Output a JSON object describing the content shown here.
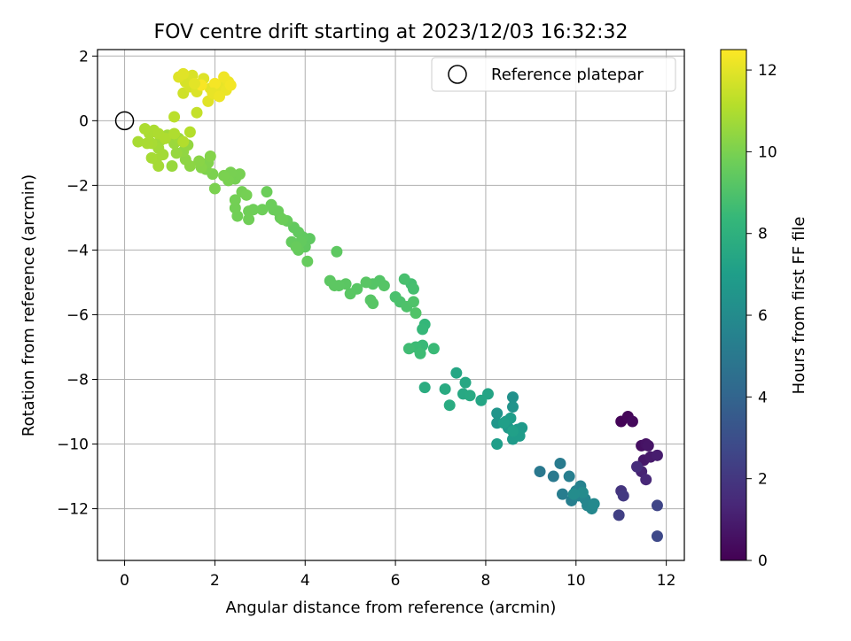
{
  "chart_data": {
    "type": "scatter",
    "title": "FOV centre drift starting at 2023/12/03 16:32:32",
    "xlabel": "Angular distance from reference (arcmin)",
    "ylabel": "Rotation from reference (arcmin)",
    "xlim": [
      -0.6,
      12.4
    ],
    "ylim": [
      -13.6,
      2.2
    ],
    "xticks": [
      0,
      2,
      4,
      6,
      8,
      10,
      12
    ],
    "yticks": [
      -12,
      -10,
      -8,
      -6,
      -4,
      -2,
      0,
      2
    ],
    "grid": true,
    "legend": {
      "placement": "top-right",
      "entries": [
        "Reference platepar"
      ]
    },
    "reference_point": {
      "x": 0,
      "y": 0,
      "marker": "hollow-circle"
    },
    "colorbar": {
      "label": "Hours from first FF file",
      "range": [
        0,
        12.5
      ],
      "ticks": [
        0,
        2,
        4,
        6,
        8,
        10,
        12
      ],
      "colormap": "viridis",
      "colors": [
        "#440154",
        "#482878",
        "#3e4989",
        "#31688e",
        "#26828e",
        "#1f9e89",
        "#35b779",
        "#6ece58",
        "#b5de2b",
        "#fde725"
      ]
    },
    "series": [
      {
        "points": [
          [
            11.0,
            -9.3,
            0.1
          ],
          [
            11.15,
            -9.15,
            0.2
          ],
          [
            11.25,
            -9.3,
            0.3
          ],
          [
            11.45,
            -10.05,
            0.5
          ],
          [
            11.55,
            -10.0,
            0.6
          ],
          [
            11.6,
            -10.05,
            0.7
          ],
          [
            11.5,
            -10.5,
            0.8
          ],
          [
            11.65,
            -10.4,
            0.9
          ],
          [
            11.8,
            -10.35,
            1.0
          ],
          [
            11.45,
            -10.85,
            1.2
          ],
          [
            11.55,
            -11.1,
            1.4
          ],
          [
            11.35,
            -10.7,
            1.6
          ],
          [
            11.0,
            -11.45,
            1.9
          ],
          [
            11.05,
            -11.6,
            2.1
          ],
          [
            10.95,
            -12.2,
            2.4
          ],
          [
            11.8,
            -11.9,
            2.6
          ],
          [
            11.8,
            -12.85,
            2.8
          ],
          [
            9.2,
            -10.85,
            5.0
          ],
          [
            9.5,
            -11.0,
            5.1
          ],
          [
            9.65,
            -10.6,
            5.2
          ],
          [
            9.7,
            -11.55,
            5.3
          ],
          [
            9.85,
            -11.0,
            5.35
          ],
          [
            9.9,
            -11.75,
            5.4
          ],
          [
            10.0,
            -11.45,
            5.5
          ],
          [
            10.1,
            -11.3,
            5.55
          ],
          [
            10.05,
            -11.6,
            5.6
          ],
          [
            10.2,
            -11.7,
            5.7
          ],
          [
            10.25,
            -11.9,
            5.75
          ],
          [
            10.35,
            -12.0,
            5.8
          ],
          [
            10.4,
            -11.85,
            5.9
          ],
          [
            10.15,
            -11.5,
            6.0
          ],
          [
            9.95,
            -11.55,
            6.05
          ],
          [
            8.6,
            -8.55,
            6.3
          ],
          [
            8.6,
            -8.85,
            6.4
          ],
          [
            8.25,
            -9.05,
            6.5
          ],
          [
            8.25,
            -9.35,
            6.55
          ],
          [
            8.45,
            -9.3,
            6.6
          ],
          [
            8.5,
            -9.5,
            6.65
          ],
          [
            8.7,
            -9.55,
            6.7
          ],
          [
            8.8,
            -9.5,
            6.75
          ],
          [
            8.6,
            -9.85,
            6.8
          ],
          [
            8.75,
            -9.75,
            6.85
          ],
          [
            8.55,
            -9.2,
            6.9
          ],
          [
            8.25,
            -10.0,
            6.95
          ],
          [
            8.4,
            -9.35,
            7.0
          ],
          [
            8.6,
            -9.6,
            7.05
          ],
          [
            8.05,
            -8.45,
            7.3
          ],
          [
            7.9,
            -8.65,
            7.35
          ],
          [
            7.35,
            -7.8,
            7.4
          ],
          [
            7.55,
            -8.1,
            7.45
          ],
          [
            7.5,
            -8.45,
            7.5
          ],
          [
            7.65,
            -8.5,
            7.55
          ],
          [
            7.1,
            -8.3,
            7.6
          ],
          [
            7.2,
            -8.8,
            7.65
          ],
          [
            6.65,
            -8.25,
            7.7
          ],
          [
            6.65,
            -6.3,
            8.3
          ],
          [
            6.6,
            -6.45,
            8.35
          ],
          [
            6.6,
            -6.95,
            8.4
          ],
          [
            6.85,
            -7.05,
            8.45
          ],
          [
            6.45,
            -7.0,
            8.5
          ],
          [
            6.55,
            -7.2,
            8.55
          ],
          [
            6.3,
            -7.05,
            8.6
          ],
          [
            6.35,
            -5.05,
            8.7
          ],
          [
            6.4,
            -5.2,
            8.75
          ],
          [
            6.2,
            -4.9,
            8.8
          ],
          [
            6.0,
            -5.45,
            8.85
          ],
          [
            6.1,
            -5.6,
            8.9
          ],
          [
            6.25,
            -5.75,
            8.95
          ],
          [
            6.4,
            -5.6,
            9.0
          ],
          [
            6.45,
            -5.95,
            9.05
          ],
          [
            5.65,
            -4.95,
            9.1
          ],
          [
            5.5,
            -5.05,
            9.12
          ],
          [
            5.75,
            -5.1,
            9.14
          ],
          [
            5.45,
            -5.55,
            9.16
          ],
          [
            5.5,
            -5.65,
            9.18
          ],
          [
            5.35,
            -5.0,
            9.2
          ],
          [
            5.15,
            -5.2,
            9.22
          ],
          [
            5.0,
            -5.35,
            9.24
          ],
          [
            4.9,
            -5.05,
            9.26
          ],
          [
            4.75,
            -5.1,
            9.28
          ],
          [
            4.55,
            -4.95,
            9.3
          ],
          [
            4.65,
            -5.1,
            9.32
          ],
          [
            4.7,
            -4.05,
            9.34
          ],
          [
            4.1,
            -3.65,
            9.36
          ],
          [
            4.0,
            -3.9,
            9.38
          ],
          [
            3.95,
            -3.6,
            9.4
          ],
          [
            3.85,
            -3.45,
            9.42
          ],
          [
            3.75,
            -3.3,
            9.44
          ],
          [
            3.9,
            -3.75,
            9.46
          ],
          [
            3.7,
            -3.75,
            9.48
          ],
          [
            3.85,
            -4.0,
            9.5
          ],
          [
            4.05,
            -4.35,
            9.52
          ],
          [
            3.8,
            -3.9,
            9.54
          ],
          [
            3.6,
            -3.1,
            9.56
          ],
          [
            3.45,
            -3.0,
            9.58
          ],
          [
            3.3,
            -2.75,
            9.6
          ],
          [
            3.4,
            -2.8,
            9.62
          ],
          [
            3.25,
            -2.6,
            9.64
          ],
          [
            3.15,
            -2.2,
            9.66
          ],
          [
            3.5,
            -3.05,
            9.68
          ],
          [
            3.05,
            -2.75,
            9.7
          ],
          [
            2.85,
            -2.75,
            9.72
          ],
          [
            2.75,
            -2.8,
            9.74
          ],
          [
            2.75,
            -3.05,
            9.76
          ],
          [
            2.5,
            -2.95,
            9.78
          ],
          [
            2.45,
            -2.7,
            9.8
          ],
          [
            2.45,
            -2.45,
            9.82
          ],
          [
            2.6,
            -2.2,
            9.84
          ],
          [
            2.7,
            -2.3,
            9.86
          ],
          [
            2.45,
            -1.8,
            9.88
          ],
          [
            2.55,
            -1.65,
            9.9
          ],
          [
            2.35,
            -1.6,
            9.92
          ],
          [
            2.3,
            -1.85,
            9.94
          ],
          [
            2.2,
            -1.7,
            9.96
          ],
          [
            2.0,
            -2.1,
            9.98
          ],
          [
            1.95,
            -1.65,
            10.0
          ],
          [
            1.8,
            -1.5,
            10.05
          ],
          [
            1.85,
            -1.3,
            10.1
          ],
          [
            1.9,
            -1.1,
            10.15
          ],
          [
            1.7,
            -1.45,
            10.2
          ],
          [
            1.65,
            -1.25,
            10.25
          ],
          [
            1.45,
            -1.4,
            10.3
          ],
          [
            1.35,
            -1.2,
            10.35
          ],
          [
            1.3,
            -0.95,
            10.4
          ],
          [
            1.4,
            -0.75,
            10.45
          ],
          [
            1.15,
            -1.0,
            10.5
          ],
          [
            1.05,
            -1.4,
            10.55
          ],
          [
            1.1,
            -0.7,
            10.6
          ],
          [
            1.2,
            -0.55,
            10.65
          ],
          [
            0.95,
            -0.45,
            10.7
          ],
          [
            0.8,
            -0.6,
            10.72
          ],
          [
            0.75,
            -0.85,
            10.74
          ],
          [
            0.85,
            -1.05,
            10.76
          ],
          [
            0.7,
            -1.2,
            10.78
          ],
          [
            0.75,
            -1.4,
            10.8
          ],
          [
            0.6,
            -1.15,
            10.82
          ],
          [
            0.6,
            -0.7,
            10.84
          ],
          [
            0.3,
            -0.65,
            10.86
          ],
          [
            0.5,
            -0.7,
            10.88
          ],
          [
            0.55,
            -0.4,
            10.9
          ],
          [
            0.65,
            -0.3,
            10.92
          ],
          [
            0.45,
            -0.25,
            10.94
          ],
          [
            0.75,
            -0.4,
            10.96
          ],
          [
            0.9,
            -0.55,
            10.98
          ],
          [
            1.1,
            -0.4,
            11.0
          ],
          [
            1.3,
            -0.65,
            11.05
          ],
          [
            1.45,
            -0.35,
            11.1
          ],
          [
            1.1,
            0.12,
            11.2
          ],
          [
            1.6,
            0.25,
            11.4
          ],
          [
            1.3,
            0.85,
            11.6
          ],
          [
            1.45,
            1.05,
            11.7
          ],
          [
            1.35,
            1.2,
            11.75
          ],
          [
            1.5,
            1.4,
            11.8
          ],
          [
            1.6,
            0.9,
            11.85
          ],
          [
            1.75,
            1.3,
            11.9
          ],
          [
            1.85,
            0.6,
            11.95
          ],
          [
            1.9,
            1.0,
            12.0
          ],
          [
            2.05,
            0.8,
            12.05
          ],
          [
            2.15,
            1.05,
            12.1
          ],
          [
            2.25,
            0.95,
            12.15
          ],
          [
            2.3,
            1.2,
            12.2
          ],
          [
            2.2,
            1.35,
            12.25
          ],
          [
            2.35,
            1.1,
            12.3
          ],
          [
            2.0,
            1.15,
            12.35
          ],
          [
            1.7,
            1.1,
            12.4
          ],
          [
            1.2,
            1.35,
            11.9
          ],
          [
            1.3,
            1.45,
            11.95
          ],
          [
            1.55,
            1.15,
            12.0
          ],
          [
            1.95,
            0.85,
            12.1
          ],
          [
            2.1,
            0.75,
            12.2
          ]
        ]
      }
    ]
  }
}
